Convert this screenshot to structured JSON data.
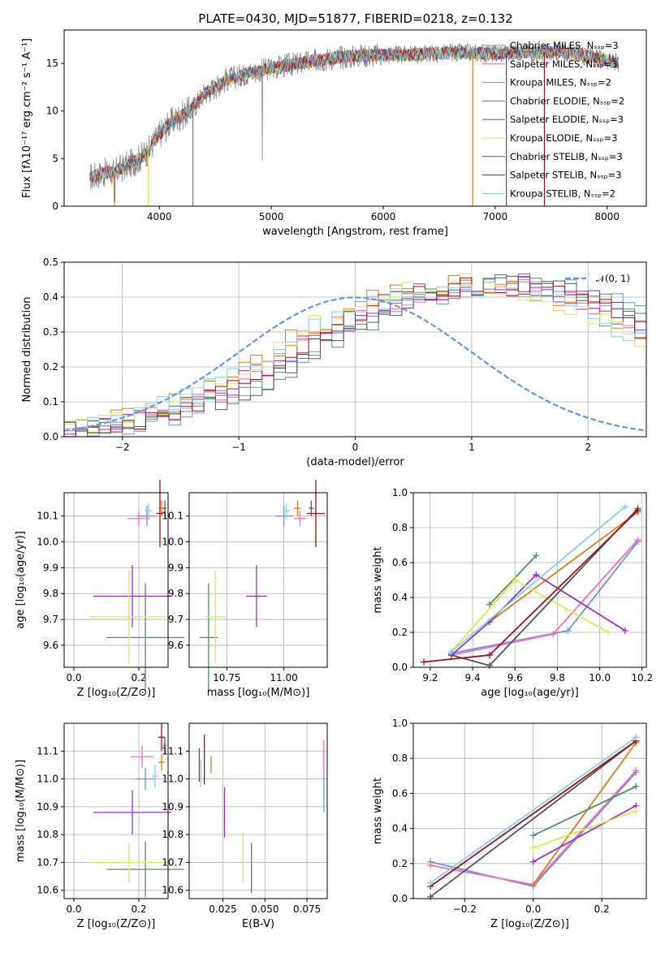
{
  "chart_data": [
    {
      "id": "spectrum",
      "type": "line",
      "title": "PLATE=0430, MJD=51877, FIBERID=0218, z=0.132",
      "xlabel": "wavelength [Angstrom, rest frame]",
      "ylabel": "Flux [fλ10⁻¹⁷ erg cm⁻² s⁻¹ A⁻¹]",
      "xlim": [
        3150,
        8350
      ],
      "ylim": [
        0,
        18.5
      ],
      "xticks": [
        "4000",
        "5000",
        "6000",
        "7000",
        "8000"
      ],
      "yticks": [
        "0",
        "5",
        "10",
        "15"
      ],
      "legend_position": "right",
      "continuum": {
        "x": [
          3380,
          3500,
          3600,
          3700,
          3800,
          3900,
          4000,
          4100,
          4200,
          4300,
          4400,
          4500,
          4600,
          4800,
          5000,
          5200,
          5400,
          5600,
          5800,
          6000,
          6200,
          6400,
          6600,
          6800,
          7000,
          7200,
          7400,
          7600,
          7800,
          8000,
          8100
        ],
        "y": [
          3.0,
          3.5,
          3.6,
          4.2,
          4.8,
          5.8,
          7.5,
          8.8,
          9.5,
          10.3,
          11.8,
          12.5,
          13.3,
          14.0,
          14.5,
          14.9,
          15.3,
          15.6,
          15.8,
          15.9,
          15.9,
          16.0,
          16.1,
          16.1,
          16.0,
          16.2,
          16.1,
          16.2,
          15.8,
          15.3,
          15.0
        ]
      },
      "series": [
        {
          "name": "Chabrier MILES, N_SSP=3",
          "color": "#6495ed"
        },
        {
          "name": "Salpeter MILES, N_SSP=3",
          "color": "#ff69b4"
        },
        {
          "name": "Kroupa MILES, N_SSP=2",
          "color": "#e07b1a"
        },
        {
          "name": "Chabrier ELODIE, N_SSP=2",
          "color": "#558b63"
        },
        {
          "name": "Salpeter ELODIE, N_SSP=3",
          "color": "#9932cc"
        },
        {
          "name": "Kroupa ELODIE, N_SSP=3",
          "color": "#d6ec50"
        },
        {
          "name": "Chabrier STELIB, N_SSP=3",
          "color": "#555555"
        },
        {
          "name": "Salpeter STELIB, N_SSP=3",
          "color": "#a50f15"
        },
        {
          "name": "Kroupa STELIB, N_SSP=2",
          "color": "#7fd3e3"
        }
      ]
    },
    {
      "id": "residuals",
      "type": "histogram",
      "xlabel": "(data-model)/error",
      "ylabel": "Normed distribution",
      "xlim": [
        -2.5,
        2.5
      ],
      "ylim": [
        0,
        0.5
      ],
      "xticks": [
        "−2",
        "−1",
        "0",
        "1",
        "2"
      ],
      "yticks": [
        "0.0",
        "0.1",
        "0.2",
        "0.3",
        "0.4",
        "0.5"
      ],
      "legend": "𝒩(0, 1)",
      "bin_width": 0.1,
      "gaussian_color": "#6495ed",
      "envelope": [
        0.02,
        0.025,
        0.03,
        0.035,
        0.04,
        0.045,
        0.05,
        0.055,
        0.07,
        0.08,
        0.09,
        0.1,
        0.11,
        0.12,
        0.14,
        0.16,
        0.18,
        0.2,
        0.22,
        0.24,
        0.26,
        0.28,
        0.3,
        0.32,
        0.33,
        0.35,
        0.37,
        0.38,
        0.39,
        0.4,
        0.41,
        0.42,
        0.42,
        0.43,
        0.43,
        0.44,
        0.44,
        0.44,
        0.43,
        0.43,
        0.42,
        0.42,
        0.41,
        0.4,
        0.39,
        0.38,
        0.37,
        0.35,
        0.33,
        0.31,
        0.29,
        0.27,
        0.25,
        0.23,
        0.21,
        0.19,
        0.17,
        0.15,
        0.13,
        0.12,
        0.1,
        0.09,
        0.08,
        0.07,
        0.06,
        0.05,
        0.04,
        0.035,
        0.03,
        0.025,
        0.02,
        0.015,
        0.01,
        0.01,
        0.01
      ]
    },
    {
      "id": "age-vs-Z",
      "type": "errorbar",
      "xlabel": "Z [log₁₀(Z/Z⊙)]",
      "ylabel": "age  [log₁₀(age/yr)]",
      "xlim": [
        -0.03,
        0.29
      ],
      "ylim": [
        9.515,
        10.19
      ],
      "xticks": [
        "0.0",
        "0.2"
      ],
      "yticks": [
        "9.6",
        "9.7",
        "9.8",
        "9.9",
        "10.0",
        "10.1"
      ],
      "points": [
        {
          "model": 0,
          "x": 0.225,
          "y": 10.1,
          "xe": 0.06,
          "ye": 0.04
        },
        {
          "model": 1,
          "x": 0.2,
          "y": 10.09,
          "xe": 0.07,
          "ye": 0.03
        },
        {
          "model": 2,
          "x": 0.27,
          "y": 10.13,
          "xe": 0.02,
          "ye": 0.03
        },
        {
          "model": 3,
          "x": 0.22,
          "y": 9.63,
          "xe": 0.24,
          "ye": 0.21
        },
        {
          "model": 4,
          "x": 0.18,
          "y": 9.79,
          "xe": 0.24,
          "ye": 0.12
        },
        {
          "model": 5,
          "x": 0.17,
          "y": 9.71,
          "xe": 0.24,
          "ye": 0.18
        },
        {
          "model": 6,
          "x": 0.28,
          "y": 10.13,
          "xe": 0.01,
          "ye": 0.03
        },
        {
          "model": 7,
          "x": 0.265,
          "y": 10.11,
          "xe": 0.02,
          "ye": 0.13
        },
        {
          "model": 8,
          "x": 0.23,
          "y": 10.12,
          "xe": 0.02,
          "ye": 0.03
        }
      ]
    },
    {
      "id": "age-vs-mass",
      "type": "errorbar",
      "xlabel": "mass [log₁₀(M/M⊙)]",
      "ylabel": "",
      "xlim": [
        10.585,
        11.19
      ],
      "ylim": [
        9.515,
        10.19
      ],
      "xticks": [
        "10.75",
        "11.00"
      ],
      "yticks": [
        "9.6",
        "9.7",
        "9.8",
        "9.9",
        "10.0",
        "10.1"
      ],
      "points": [
        {
          "model": 0,
          "x": 11.0,
          "y": 10.1,
          "xe": 0.08,
          "ye": 0.04
        },
        {
          "model": 1,
          "x": 11.07,
          "y": 10.09,
          "xe": 0.05,
          "ye": 0.03
        },
        {
          "model": 2,
          "x": 11.06,
          "y": 10.13,
          "xe": 0.03,
          "ye": 0.03
        },
        {
          "model": 3,
          "x": 10.67,
          "y": 9.63,
          "xe": 0.08,
          "ye": 0.21
        },
        {
          "model": 4,
          "x": 10.88,
          "y": 9.79,
          "xe": 0.09,
          "ye": 0.12
        },
        {
          "model": 5,
          "x": 10.7,
          "y": 9.71,
          "xe": 0.09,
          "ye": 0.18
        },
        {
          "model": 6,
          "x": 11.12,
          "y": 10.13,
          "xe": 0.02,
          "ye": 0.03
        },
        {
          "model": 7,
          "x": 11.14,
          "y": 10.11,
          "xe": 0.08,
          "ye": 0.13
        },
        {
          "model": 8,
          "x": 11.01,
          "y": 10.12,
          "xe": 0.03,
          "ye": 0.03
        }
      ]
    },
    {
      "id": "weight-vs-age",
      "type": "line",
      "xlabel": "age  [log₁₀(age/yr)]",
      "ylabel": "mass weight",
      "xlim": [
        9.12,
        10.22
      ],
      "ylim": [
        0,
        1
      ],
      "xticks": [
        "9.2",
        "9.4",
        "9.6",
        "9.8",
        "10.0",
        "10.2"
      ],
      "yticks": [
        "0.0",
        "0.2",
        "0.4",
        "0.6",
        "0.8",
        "1.0"
      ],
      "series": [
        {
          "model": 0,
          "x": [
            9.3,
            9.85,
            10.18
          ],
          "y": [
            0.08,
            0.21,
            0.72
          ]
        },
        {
          "model": 1,
          "x": [
            9.3,
            9.78,
            10.18
          ],
          "y": [
            0.07,
            0.19,
            0.73
          ]
        },
        {
          "model": 2,
          "x": [
            9.48,
            10.18
          ],
          "y": [
            0.26,
            0.89
          ]
        },
        {
          "model": 3,
          "x": [
            9.48,
            9.7
          ],
          "y": [
            0.36,
            0.64
          ]
        },
        {
          "model": 4,
          "x": [
            9.3,
            9.48,
            9.7,
            10.12
          ],
          "y": [
            0.07,
            0.26,
            0.53,
            0.21
          ]
        },
        {
          "model": 5,
          "x": [
            9.3,
            9.6,
            10.04
          ],
          "y": [
            0.09,
            0.5,
            0.2
          ]
        },
        {
          "model": 6,
          "x": [
            9.3,
            9.48,
            10.18
          ],
          "y": [
            0.07,
            0.01,
            0.91
          ]
        },
        {
          "model": 7,
          "x": [
            9.17,
            9.48,
            10.18
          ],
          "y": [
            0.03,
            0.07,
            0.9
          ]
        },
        {
          "model": 8,
          "x": [
            9.3,
            10.12
          ],
          "y": [
            0.09,
            0.92
          ]
        }
      ]
    },
    {
      "id": "mass-vs-Z",
      "type": "errorbar",
      "xlabel": "Z [log₁₀(Z/Z⊙)]",
      "ylabel": "mass [log₁₀(M/M⊙)]",
      "xlim": [
        -0.03,
        0.29
      ],
      "ylim": [
        10.57,
        11.2
      ],
      "xticks": [
        "0.0",
        "0.2"
      ],
      "yticks": [
        "10.6",
        "10.7",
        "10.8",
        "10.9",
        "11.0",
        "11.1"
      ],
      "points": [
        {
          "model": 0,
          "x": 0.22,
          "y": 11.0,
          "xe": 0.06,
          "ye": 0.04
        },
        {
          "model": 1,
          "x": 0.21,
          "y": 11.08,
          "xe": 0.07,
          "ye": 0.04
        },
        {
          "model": 2,
          "x": 0.27,
          "y": 11.06,
          "xe": 0.02,
          "ye": 0.03
        },
        {
          "model": 3,
          "x": 0.22,
          "y": 10.675,
          "xe": 0.24,
          "ye": 0.1
        },
        {
          "model": 4,
          "x": 0.18,
          "y": 10.88,
          "xe": 0.24,
          "ye": 0.08
        },
        {
          "model": 5,
          "x": 0.17,
          "y": 10.7,
          "xe": 0.24,
          "ye": 0.07
        },
        {
          "model": 6,
          "x": 0.28,
          "y": 11.12,
          "xe": 0.01,
          "ye": 0.03
        },
        {
          "model": 7,
          "x": 0.27,
          "y": 11.15,
          "xe": 0.02,
          "ye": 0.05
        },
        {
          "model": 8,
          "x": 0.25,
          "y": 11.01,
          "xe": 0.02,
          "ye": 0.04
        }
      ]
    },
    {
      "id": "mass-vs-EBV",
      "type": "errorbar",
      "xlabel": "E(B-V)",
      "ylabel": "",
      "xlim": [
        0.005,
        0.087
      ],
      "ylim": [
        10.57,
        11.2
      ],
      "xticks": [
        "0.025",
        "0.050",
        "0.075"
      ],
      "yticks": [
        "10.6",
        "10.7",
        "10.8",
        "10.9",
        "11.0",
        "11.1"
      ],
      "points": [
        {
          "model": 0,
          "x": 0.085,
          "y": 10.95,
          "xe": 0,
          "ye": 0.07
        },
        {
          "model": 1,
          "x": 0.085,
          "y": 11.08,
          "xe": 0,
          "ye": 0.06
        },
        {
          "model": 2,
          "x": 0.018,
          "y": 11.05,
          "xe": 0,
          "ye": 0.03
        },
        {
          "model": 3,
          "x": 0.042,
          "y": 10.68,
          "xe": 0,
          "ye": 0.09
        },
        {
          "model": 4,
          "x": 0.026,
          "y": 10.88,
          "xe": 0,
          "ye": 0.09
        },
        {
          "model": 5,
          "x": 0.037,
          "y": 10.72,
          "xe": 0,
          "ye": 0.09
        },
        {
          "model": 6,
          "x": 0.011,
          "y": 11.05,
          "xe": 0,
          "ye": 0.06
        },
        {
          "model": 7,
          "x": 0.014,
          "y": 11.07,
          "xe": 0,
          "ye": 0.09
        },
        {
          "model": 8,
          "x": 0.012,
          "y": 11.02,
          "xe": 0,
          "ye": 0.05
        }
      ]
    },
    {
      "id": "weight-vs-Z",
      "type": "line",
      "xlabel": "Z [log₁₀(Z/Z⊙)]",
      "ylabel": "mass weight",
      "xlim": [
        -0.35,
        0.33
      ],
      "ylim": [
        0,
        1
      ],
      "xticks": [
        "−0.2",
        "0.0",
        "0.2"
      ],
      "yticks": [
        "0.0",
        "0.2",
        "0.4",
        "0.6",
        "0.8",
        "1.0"
      ],
      "series": [
        {
          "model": 0,
          "x": [
            -0.3,
            0.0,
            0.3
          ],
          "y": [
            0.21,
            0.07,
            0.72
          ]
        },
        {
          "model": 1,
          "x": [
            -0.3,
            0.0,
            0.3
          ],
          "y": [
            0.19,
            0.08,
            0.73
          ]
        },
        {
          "model": 2,
          "x": [
            0.0,
            0.3
          ],
          "y": [
            0.08,
            0.89
          ]
        },
        {
          "model": 3,
          "x": [
            0.0,
            0.3
          ],
          "y": [
            0.36,
            0.64
          ]
        },
        {
          "model": 4,
          "x": [
            0.0,
            0.3
          ],
          "y": [
            0.21,
            0.53
          ]
        },
        {
          "model": 5,
          "x": [
            0.0,
            0.3
          ],
          "y": [
            0.29,
            0.5
          ]
        },
        {
          "model": 6,
          "x": [
            -0.3,
            0.3
          ],
          "y": [
            0.01,
            0.9
          ]
        },
        {
          "model": 7,
          "x": [
            -0.3,
            0.3
          ],
          "y": [
            0.07,
            0.9
          ]
        },
        {
          "model": 8,
          "x": [
            -0.3,
            0.3
          ],
          "y": [
            0.09,
            0.92
          ]
        }
      ]
    }
  ]
}
